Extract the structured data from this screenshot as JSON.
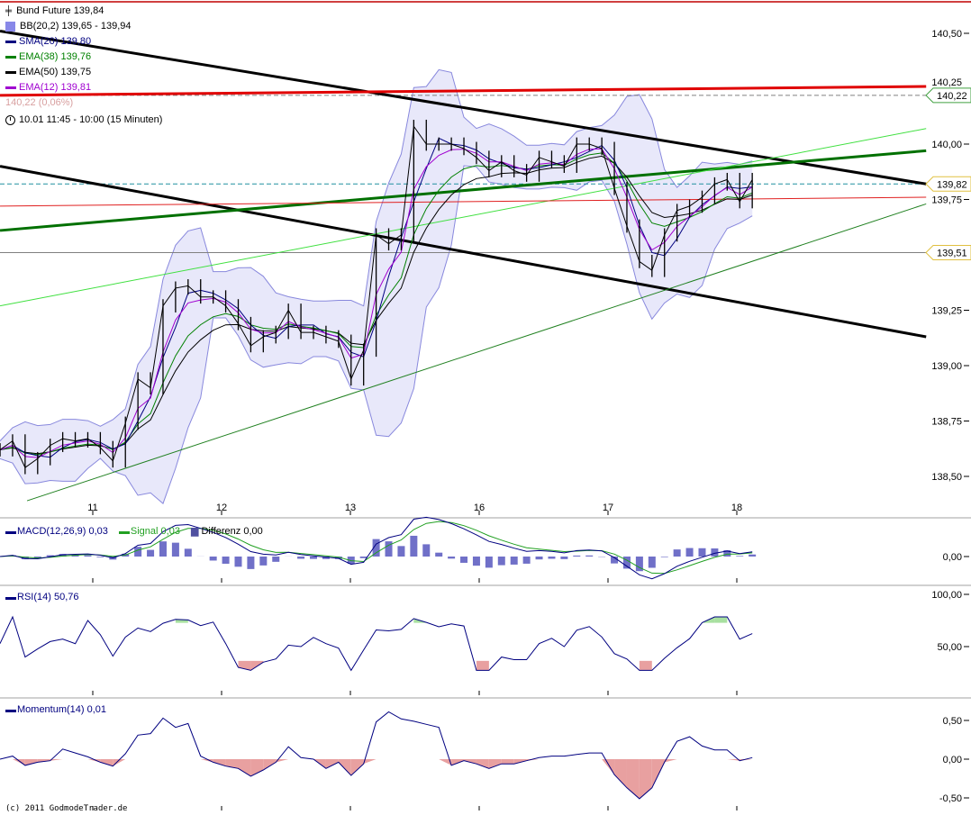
{
  "legend": {
    "instrument": "Bund Future 139,84",
    "bb": "BB(20,2) 139,65 - 139,94",
    "sma20": "SMA(20) 139,80",
    "ema38": "EMA(38) 139,76",
    "ema50": "EMA(50) 139,75",
    "ema12": "EMA(12) 139,81",
    "faded_label": "140,22 (0,06%)",
    "timeframe": "10.01 11:45 - 10:00 (15 Minuten)"
  },
  "colors": {
    "bb": "#8888dd",
    "sma20": "#000080",
    "ema38": "#008000",
    "ema50": "#000000",
    "ema12": "#a000d0",
    "macd": "#000080",
    "signal": "#22a022",
    "hist": "#7070c8",
    "rsi": "#000080",
    "fill_pos": "#a8e0a0",
    "fill_neg": "#e8a0a0"
  },
  "macd_panel": {
    "macd": "MACD(12,26,9) 0,03",
    "signal": "Signal 0,03",
    "diff": "Differenz 0,00",
    "ticks": [
      {
        "v": 0,
        "label": "0,00"
      }
    ]
  },
  "rsi_panel": {
    "label": "RSI(14) 50,76",
    "ticks": [
      {
        "v": 100,
        "label": "100,00"
      },
      {
        "v": 50,
        "label": "50,00"
      }
    ]
  },
  "momentum_panel": {
    "label": "Momentum(14) 0,01",
    "ticks": [
      {
        "v": 0.5,
        "label": "0,50"
      },
      {
        "v": 0,
        "label": "0,00"
      },
      {
        "v": -0.5,
        "label": "-0,50"
      }
    ]
  },
  "footer": "(c) 2011 GodmodeTrader.de",
  "chart_data": {
    "type": "line",
    "title": "Bund Future",
    "x_ticks": [
      {
        "x": 1,
        "label": "11"
      },
      {
        "x": 2,
        "label": "12"
      },
      {
        "x": 3,
        "label": "13"
      },
      {
        "x": 4,
        "label": "16"
      },
      {
        "x": 5,
        "label": "17"
      },
      {
        "x": 6,
        "label": "18"
      }
    ],
    "x_range": [
      0.28,
      7.47
    ],
    "y_range": [
      138.4,
      140.65
    ],
    "y_ticks": [
      {
        "v": 140.5,
        "label": "140,50"
      },
      {
        "v": 140.25,
        "label": "140,25"
      },
      {
        "v": 140.0,
        "label": "140,00"
      },
      {
        "v": 139.75,
        "label": "139,75"
      },
      {
        "v": 139.25,
        "label": "139,25"
      },
      {
        "v": 139.0,
        "label": "139,00"
      },
      {
        "v": 138.75,
        "label": "138,75"
      },
      {
        "v": 138.5,
        "label": "138,50"
      }
    ],
    "series_x_range": [
      0.28,
      6.12
    ],
    "close": [
      138.62,
      138.66,
      138.54,
      138.58,
      138.64,
      138.67,
      138.66,
      138.67,
      138.63,
      138.57,
      138.74,
      138.94,
      138.9,
      139.27,
      139.35,
      139.36,
      139.31,
      139.31,
      139.27,
      139.19,
      139.09,
      139.13,
      139.15,
      139.25,
      139.15,
      139.15,
      139.13,
      139.11,
      138.94,
      139.07,
      139.59,
      139.55,
      139.59,
      140.08,
      140.0,
      140.0,
      140.0,
      139.98,
      139.94,
      139.88,
      139.92,
      139.88,
      139.86,
      139.94,
      139.92,
      139.9,
      140.0,
      140.0,
      139.98,
      139.8,
      139.63,
      139.47,
      139.43,
      139.59,
      139.7,
      139.72,
      139.76,
      139.82,
      139.84,
      139.74,
      139.84
    ],
    "trendlines": [
      {
        "color": "#000000",
        "width": 3,
        "from": [
          0.28,
          140.51
        ],
        "to": [
          7.47,
          139.82
        ]
      },
      {
        "color": "#000000",
        "width": 3,
        "from": [
          0.28,
          139.9
        ],
        "to": [
          7.47,
          139.13
        ]
      },
      {
        "color": "#e00000",
        "width": 3,
        "from": [
          0.28,
          140.22
        ],
        "to": [
          7.47,
          140.26
        ]
      },
      {
        "color": "#007000",
        "width": 3,
        "from": [
          0.28,
          139.61
        ],
        "to": [
          7.47,
          139.97
        ]
      },
      {
        "color": "#40e040",
        "width": 1,
        "from": [
          0.28,
          139.27
        ],
        "to": [
          7.47,
          140.07
        ]
      },
      {
        "color": "#208020",
        "width": 1,
        "from": [
          0.49,
          138.39
        ],
        "to": [
          7.47,
          139.73
        ]
      },
      {
        "color": "#e02020",
        "width": 1,
        "from": [
          0.28,
          139.72
        ],
        "to": [
          7.47,
          139.76
        ]
      }
    ],
    "horizontal_lines": [
      {
        "v": 139.51,
        "color": "#808080",
        "dash": false
      },
      {
        "v": 139.82,
        "color": "#2090a0",
        "dash": true
      },
      {
        "v": 140.22,
        "color": "#808080",
        "dash": true
      }
    ],
    "price_badges": [
      {
        "v": 140.22,
        "label": "140,22",
        "border": "#40a040"
      },
      {
        "v": 139.82,
        "label": "139,82",
        "border": "#e0c040"
      },
      {
        "v": 139.51,
        "label": "139,51",
        "border": "#e0c040"
      }
    ]
  }
}
